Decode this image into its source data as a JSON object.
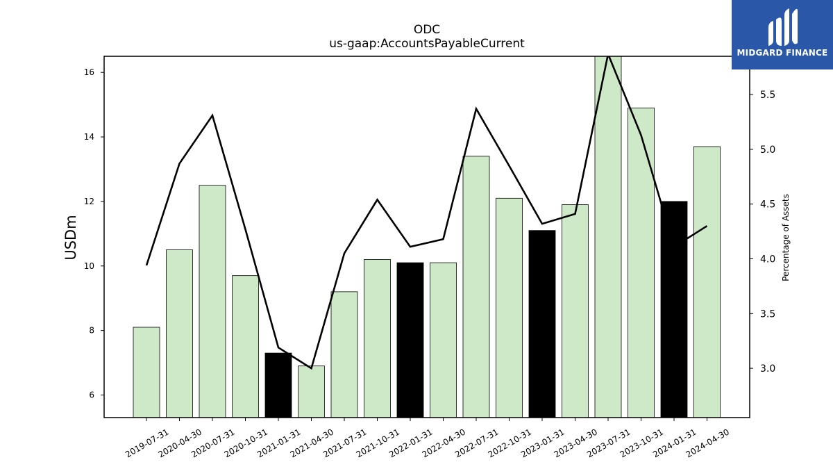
{
  "brand": {
    "name": "MIDGARD FINANCE",
    "color": "#2a57a8"
  },
  "chart_data": {
    "type": "bar",
    "title": "ODC",
    "subtitle": "us-gaap:AccountsPayableCurrent",
    "ylabel": "USDm",
    "y2label": "Percentage of Assets",
    "ylim": [
      5.3,
      16.5
    ],
    "y2lim": [
      2.55,
      5.85
    ],
    "yticks": [
      6,
      8,
      10,
      12,
      14,
      16
    ],
    "y2ticks": [
      3.0,
      3.5,
      4.0,
      4.5,
      5.0,
      5.5
    ],
    "categories": [
      "2019-07-31",
      "2020-04-30",
      "2020-07-31",
      "2020-10-31",
      "2021-01-31",
      "2021-04-30",
      "2021-07-31",
      "2021-10-31",
      "2022-01-31",
      "2022-04-30",
      "2022-07-31",
      "2022-10-31",
      "2023-01-31",
      "2023-04-30",
      "2023-07-31",
      "2023-10-31",
      "2024-01-31",
      "2024-04-30"
    ],
    "series": [
      {
        "type": "bar",
        "axis": "left",
        "values": [
          8.1,
          10.5,
          12.5,
          9.7,
          7.3,
          6.9,
          9.2,
          10.2,
          10.1,
          10.1,
          13.4,
          12.1,
          11.1,
          11.9,
          16.5,
          14.9,
          12.0,
          13.7
        ],
        "highlighted": [
          false,
          false,
          false,
          false,
          true,
          false,
          false,
          false,
          true,
          false,
          false,
          false,
          true,
          false,
          false,
          false,
          true,
          false
        ]
      },
      {
        "type": "line",
        "axis": "right",
        "values": [
          3.94,
          4.87,
          5.31,
          4.27,
          3.19,
          3.0,
          4.05,
          4.54,
          4.11,
          4.18,
          5.37,
          4.85,
          4.32,
          4.41,
          5.87,
          5.13,
          4.11,
          4.3
        ]
      }
    ],
    "colors": {
      "bar": "#cde9c8",
      "bar_highlight": "#000000",
      "bar_edge": "#000000",
      "line": "#000000"
    },
    "grid": false,
    "legend": "none"
  }
}
